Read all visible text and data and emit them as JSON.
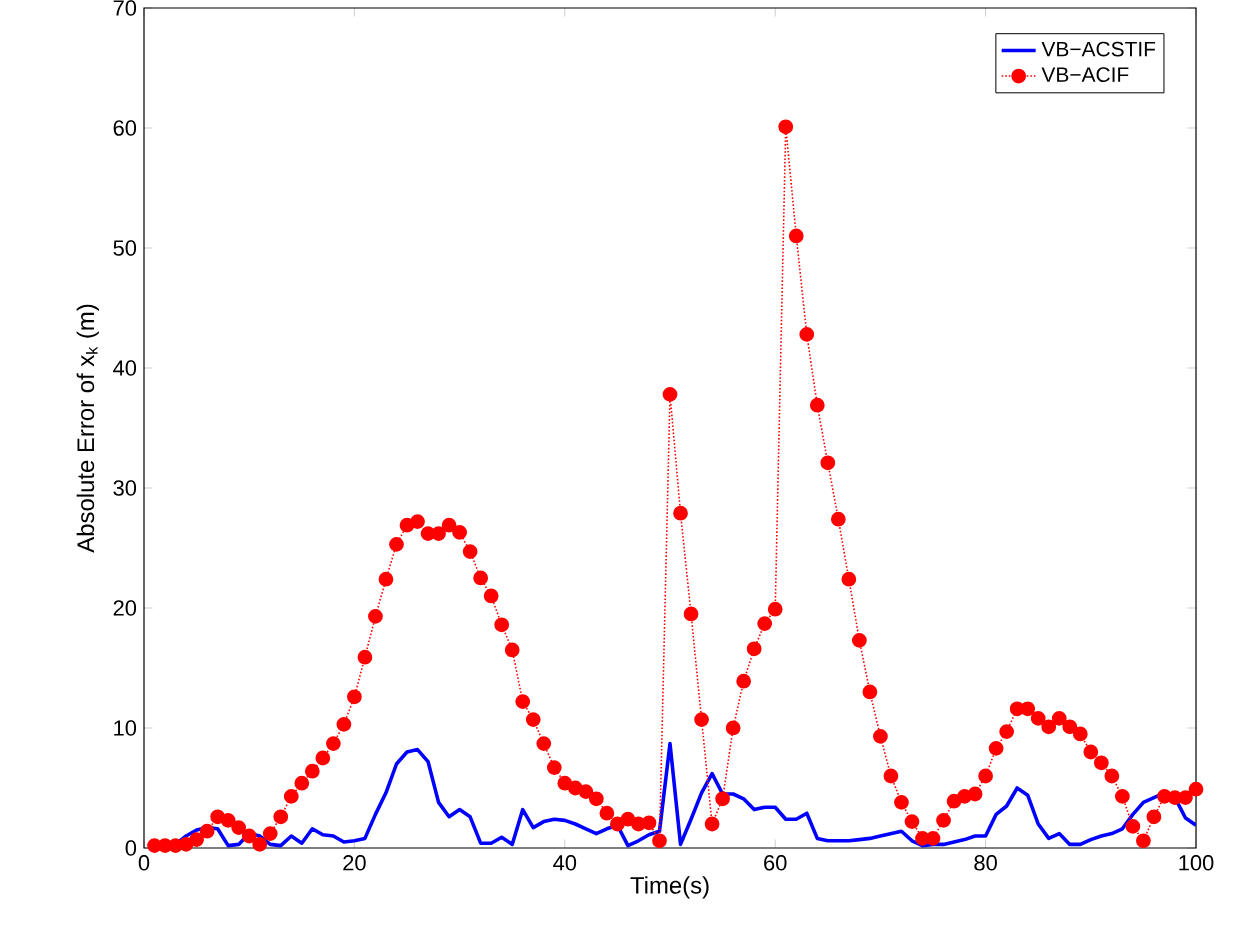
{
  "chart_data": {
    "type": "line",
    "xlabel": "Time(s)",
    "ylabel": "Absolute Error of x$_{k}$ (m)",
    "x": [
      1,
      2,
      3,
      4,
      5,
      6,
      7,
      8,
      9,
      10,
      11,
      12,
      13,
      14,
      15,
      16,
      17,
      18,
      19,
      20,
      21,
      22,
      23,
      24,
      25,
      26,
      27,
      28,
      29,
      30,
      31,
      32,
      33,
      34,
      35,
      36,
      37,
      38,
      39,
      40,
      41,
      42,
      43,
      44,
      45,
      46,
      47,
      48,
      49,
      50,
      51,
      52,
      53,
      54,
      55,
      56,
      57,
      58,
      59,
      60,
      61,
      62,
      63,
      64,
      65,
      66,
      67,
      68,
      69,
      70,
      71,
      72,
      73,
      74,
      75,
      76,
      77,
      78,
      79,
      80,
      81,
      82,
      83,
      84,
      85,
      86,
      87,
      88,
      89,
      90,
      91,
      92,
      93,
      94,
      95,
      96,
      97,
      98,
      99,
      100
    ],
    "xlim": [
      0,
      100
    ],
    "ylim": [
      0,
      70
    ],
    "xticks": [
      0,
      20,
      40,
      60,
      80,
      100
    ],
    "yticks": [
      0,
      10,
      20,
      30,
      40,
      50,
      60,
      70
    ],
    "legend": "top right",
    "series": [
      {
        "name": "VB−ACSTIF",
        "color": "#0000ff",
        "marker": "none",
        "line_style": "solid",
        "values": [
          0,
          0,
          0.3,
          1.0,
          1.5,
          1.7,
          1.6,
          0.2,
          0.3,
          1.2,
          1.0,
          0.3,
          0.2,
          1.0,
          0.4,
          1.6,
          1.1,
          1.0,
          0.5,
          0.6,
          0.8,
          2.8,
          4.6,
          7.0,
          8.0,
          8.2,
          7.2,
          3.8,
          2.6,
          3.2,
          2.6,
          0.4,
          0.4,
          0.9,
          0.3,
          3.2,
          1.7,
          2.2,
          2.4,
          2.3,
          2.0,
          1.6,
          1.2,
          1.6,
          1.9,
          0.2,
          0.6,
          1.1,
          1.4,
          8.7,
          0.3,
          2.4,
          4.6,
          6.2,
          4.5,
          4.5,
          4.1,
          3.2,
          3.4,
          3.4,
          2.4,
          2.4,
          2.9,
          0.8,
          0.6,
          0.6,
          0.6,
          0.7,
          0.8,
          1.0,
          1.2,
          1.4,
          0.6,
          0.2,
          0.3,
          0.3,
          0.5,
          0.7,
          1.0,
          1.0,
          2.8,
          3.5,
          5.0,
          4.4,
          2.0,
          0.8,
          1.2,
          0.3,
          0.3,
          0.7,
          1.0,
          1.2,
          1.6,
          2.8,
          3.8,
          4.2,
          4.6,
          4.2,
          2.5,
          1.9
        ]
      },
      {
        "name": "VB−ACIF",
        "color": "#ff0000",
        "marker": "circle",
        "line_style": "dotted",
        "values": [
          0.2,
          0.2,
          0.2,
          0.3,
          0.7,
          1.4,
          2.6,
          2.3,
          1.7,
          1.0,
          0.3,
          1.2,
          2.6,
          4.3,
          5.4,
          6.4,
          7.5,
          8.7,
          10.3,
          12.6,
          15.9,
          19.3,
          22.4,
          25.3,
          26.9,
          27.2,
          26.2,
          26.2,
          26.9,
          26.3,
          24.7,
          22.5,
          21.0,
          18.6,
          16.5,
          12.2,
          10.7,
          8.7,
          6.7,
          5.4,
          5.0,
          4.7,
          4.1,
          2.9,
          2.0,
          2.4,
          2.0,
          2.1,
          0.6,
          37.8,
          27.9,
          19.5,
          10.7,
          2.0,
          4.1,
          10.0,
          13.9,
          16.6,
          18.7,
          19.9,
          60.1,
          51.0,
          42.8,
          36.9,
          32.1,
          27.4,
          22.4,
          17.3,
          13.0,
          9.3,
          6.0,
          3.8,
          2.2,
          0.8,
          0.8,
          2.3,
          3.9,
          4.3,
          4.5,
          6.0,
          8.3,
          9.7,
          11.6,
          11.6,
          10.8,
          10.1,
          10.8,
          10.1,
          9.5,
          8.0,
          7.1,
          6.0,
          4.3,
          1.8,
          0.6,
          2.6,
          4.3,
          4.2,
          4.2,
          4.9
        ]
      }
    ]
  }
}
